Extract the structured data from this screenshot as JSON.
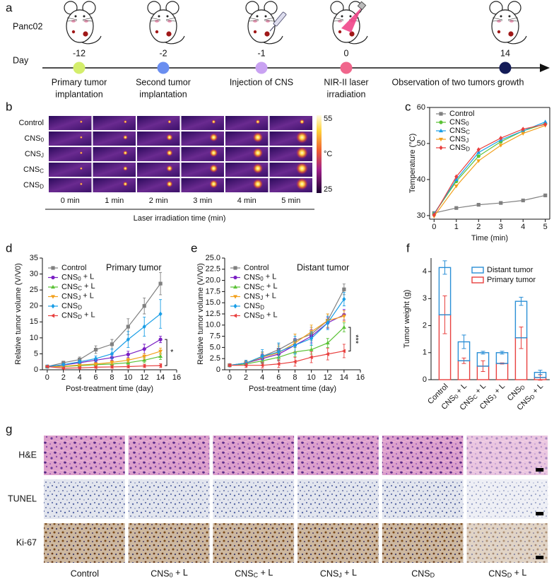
{
  "panels": [
    "a",
    "b",
    "c",
    "d",
    "e",
    "f",
    "g"
  ],
  "timeline": {
    "model": "Panc02",
    "axis_label": "Day",
    "events": [
      {
        "day": "-12",
        "label": [
          "Primary tumor",
          "implantation"
        ],
        "color": "#d4ee6c"
      },
      {
        "day": "-2",
        "label": [
          "Second tumor",
          "implantation"
        ],
        "color": "#6a8ef0"
      },
      {
        "day": "-1",
        "label": [
          "Injection of CNS"
        ],
        "color": "#c9a2f2"
      },
      {
        "day": "0",
        "label": [
          "NIR-II laser",
          "irradiation"
        ],
        "color": "#f0668c"
      },
      {
        "day": "14",
        "label": [
          "Observation of two tumors growth"
        ],
        "color": "#141c58"
      }
    ]
  },
  "thermal": {
    "rows": [
      "Control",
      "CNS0",
      "CNSJ",
      "CNSC",
      "CNSD"
    ],
    "columns": [
      "0 min",
      "1 min",
      "2 min",
      "3 min",
      "4 min",
      "5 min"
    ],
    "axis_label": "Laser irradiation time (min)",
    "colorbar": {
      "max": 55,
      "unit": "°C",
      "min": 25
    }
  },
  "chart_data": [
    {
      "type": "line",
      "x_label": "Time (min)",
      "y_label": "Temperature (°C)",
      "x": [
        0,
        1,
        2,
        3,
        4,
        5
      ],
      "xlim": [
        -0.2,
        5.2
      ],
      "xticks": [
        0,
        1,
        2,
        3,
        4,
        5
      ],
      "ylim": [
        29,
        60
      ],
      "yticks": [
        30,
        40,
        50,
        60
      ],
      "frame": true,
      "series": [
        {
          "name": "Control",
          "color": "#808080",
          "marker": "square",
          "values": [
            30.7,
            32.1,
            33.0,
            33.5,
            34.2,
            35.6
          ]
        },
        {
          "name": "CNS0",
          "color": "#5bc236",
          "marker": "circle",
          "values": [
            30.5,
            39.5,
            46.5,
            50.5,
            53.5,
            55.5
          ]
        },
        {
          "name": "CNSC",
          "color": "#1a9ee6",
          "marker": "triangle-up",
          "values": [
            30.5,
            40.0,
            47.5,
            51.0,
            53.5,
            56.0
          ]
        },
        {
          "name": "CNSJ",
          "color": "#f2a01c",
          "marker": "triangle-down",
          "values": [
            29.8,
            38.2,
            45.2,
            49.5,
            52.8,
            55.0
          ]
        },
        {
          "name": "CNSD",
          "color": "#e8403f",
          "marker": "diamond",
          "values": [
            30.2,
            40.8,
            48.3,
            51.5,
            54.0,
            55.3
          ]
        }
      ]
    },
    {
      "type": "line",
      "x_label": "Post-treatment time (day)",
      "y_label": "Relative tumor volume (V/V0)",
      "annotation": "Primary tumor",
      "significance": "*",
      "x": [
        0,
        2,
        4,
        6,
        8,
        10,
        12,
        14
      ],
      "xlim": [
        -0.6,
        16
      ],
      "xticks": [
        0,
        2,
        4,
        6,
        8,
        10,
        12,
        14,
        16
      ],
      "ylim": [
        0,
        35
      ],
      "yticks": [
        0,
        5,
        10,
        15,
        20,
        25,
        30,
        35
      ],
      "frame": false,
      "series": [
        {
          "name": "Control",
          "color": "#808080",
          "marker": "square",
          "values": [
            1,
            2.2,
            3.2,
            6.3,
            8,
            13.5,
            20,
            27
          ],
          "errors": [
            0.2,
            0.5,
            0.8,
            1.2,
            1.5,
            2.5,
            2.5,
            3.5
          ]
        },
        {
          "name": "CNS0 + L",
          "color": "#7a1fc4",
          "marker": "circle",
          "values": [
            1,
            1.5,
            2.2,
            3,
            3.8,
            4.8,
            6.5,
            9.5
          ],
          "errors": [
            0.2,
            0.4,
            0.5,
            0.6,
            0.8,
            1,
            1.5,
            1
          ]
        },
        {
          "name": "CNSC + L",
          "color": "#5bc236",
          "marker": "triangle-up",
          "values": [
            1,
            1,
            1.3,
            1.6,
            1.8,
            2.2,
            3,
            4.2
          ],
          "errors": [
            0.2,
            0.3,
            0.3,
            0.4,
            0.4,
            0.5,
            0.8,
            1
          ]
        },
        {
          "name": "CNSJ + L",
          "color": "#f2a01c",
          "marker": "triangle-down",
          "values": [
            1,
            1.1,
            1.5,
            1.8,
            2.3,
            3,
            4.2,
            5.8
          ],
          "errors": [
            0.2,
            0.3,
            0.3,
            0.4,
            0.5,
            0.6,
            0.8,
            1
          ]
        },
        {
          "name": "CNSD",
          "color": "#1a9ee6",
          "marker": "diamond",
          "values": [
            1,
            1.6,
            2.5,
            3.5,
            5,
            9.5,
            13.5,
            17.5
          ],
          "errors": [
            0.2,
            0.3,
            0.5,
            0.8,
            1.5,
            2.5,
            3,
            4.5
          ]
        },
        {
          "name": "CNSD + L",
          "color": "#e8403f",
          "marker": "triangle-left",
          "values": [
            1,
            0.5,
            0.6,
            0.8,
            0.9,
            1,
            1.2,
            1.3
          ],
          "errors": [
            0.2,
            0.2,
            0.3,
            0.3,
            0.4,
            0.4,
            0.5,
            0.6
          ]
        }
      ]
    },
    {
      "type": "line",
      "x_label": "Post-treatment time (day)",
      "y_label": "Relative tumor volume (V/V0)",
      "annotation": "Distant tumor",
      "significance": "***",
      "x": [
        0,
        2,
        4,
        6,
        8,
        10,
        12,
        14
      ],
      "xlim": [
        -0.6,
        16
      ],
      "xticks": [
        0,
        2,
        4,
        6,
        8,
        10,
        12,
        14,
        16
      ],
      "ylim": [
        0,
        25
      ],
      "yticks": [
        0,
        2.5,
        {
          "value": 5,
          "label": "5.0"
        },
        7.5,
        {
          "value": 10,
          "label": "10.0"
        },
        12.5,
        {
          "value": 15,
          "label": "15.0"
        },
        17.5,
        {
          "value": 20,
          "label": "20.0"
        },
        22.5,
        {
          "value": 25,
          "label": "25.0"
        }
      ],
      "frame": false,
      "series": [
        {
          "name": "Control",
          "color": "#808080",
          "marker": "square",
          "values": [
            1,
            1.5,
            3,
            4.5,
            6.5,
            8,
            11,
            18
          ],
          "errors": [
            0.3,
            0.5,
            1,
            1.2,
            1.5,
            1.5,
            1.5,
            1.2
          ]
        },
        {
          "name": "CNS0 + L",
          "color": "#7a1fc4",
          "marker": "circle",
          "values": [
            1,
            1.5,
            2.5,
            3.5,
            5.5,
            7.5,
            10.5,
            12.3
          ],
          "errors": [
            0.3,
            0.6,
            1,
            1.2,
            1.5,
            1.5,
            1.2,
            1.2
          ]
        },
        {
          "name": "CNSC + L",
          "color": "#5bc236",
          "marker": "triangle-up",
          "values": [
            1,
            1.3,
            2,
            2.8,
            4,
            4.5,
            6,
            9.5
          ],
          "errors": [
            0.3,
            0.4,
            0.6,
            0.8,
            1,
            1,
            1,
            1
          ]
        },
        {
          "name": "CNSJ + L",
          "color": "#f2a01c",
          "marker": "triangle-down",
          "values": [
            1,
            1.5,
            2.8,
            3.8,
            6,
            8.5,
            11,
            12
          ],
          "errors": [
            0.3,
            0.6,
            1,
            1.5,
            2,
            1.5,
            1.5,
            1.2
          ]
        },
        {
          "name": "CNSD",
          "color": "#1a9ee6",
          "marker": "diamond",
          "values": [
            1,
            1.5,
            3,
            4,
            5.5,
            7,
            10.5,
            15.8
          ],
          "errors": [
            0.3,
            0.6,
            1.5,
            2,
            2,
            1.5,
            1.5,
            1.5
          ]
        },
        {
          "name": "CNSD + L",
          "color": "#e8403f",
          "marker": "triangle-left",
          "values": [
            1,
            1,
            1,
            1.3,
            1.8,
            2.8,
            3.5,
            4.2
          ],
          "errors": [
            0.3,
            0.5,
            0.6,
            0.8,
            1,
            1.2,
            1.3,
            1.5
          ]
        }
      ]
    },
    {
      "type": "stacked_bar",
      "y_label": "Tumor weight (g)",
      "categories": [
        "Control",
        "CNS0 + L",
        "CNSC + L",
        "CNSJ + L",
        "CNSD",
        "CNSD + L"
      ],
      "ylim": [
        0,
        4.5
      ],
      "yticks": [
        0,
        1,
        2,
        3,
        4
      ],
      "frame": false,
      "series": [
        {
          "name": "Primary tumor",
          "color": "#e8403f",
          "values": [
            2.4,
            0.7,
            0.5,
            0.6,
            1.55,
            0.08
          ],
          "errors": [
            0.7,
            0.1,
            0.2,
            0.02,
            0.4,
            0.1
          ]
        },
        {
          "name": "Distant tumor",
          "color": "#2a8fd6",
          "values": [
            1.75,
            0.7,
            0.5,
            0.4,
            1.35,
            0.19
          ],
          "errors": [
            0.25,
            0.25,
            0.05,
            0.05,
            0.15,
            0.08
          ]
        }
      ]
    }
  ],
  "histology": {
    "rows": [
      "H&E",
      "TUNEL",
      "Ki-67"
    ],
    "columns": [
      "Control",
      "CNS0 + L",
      "CNSC + L",
      "CNSJ + L",
      "CNSD",
      "CNSD + L"
    ]
  }
}
